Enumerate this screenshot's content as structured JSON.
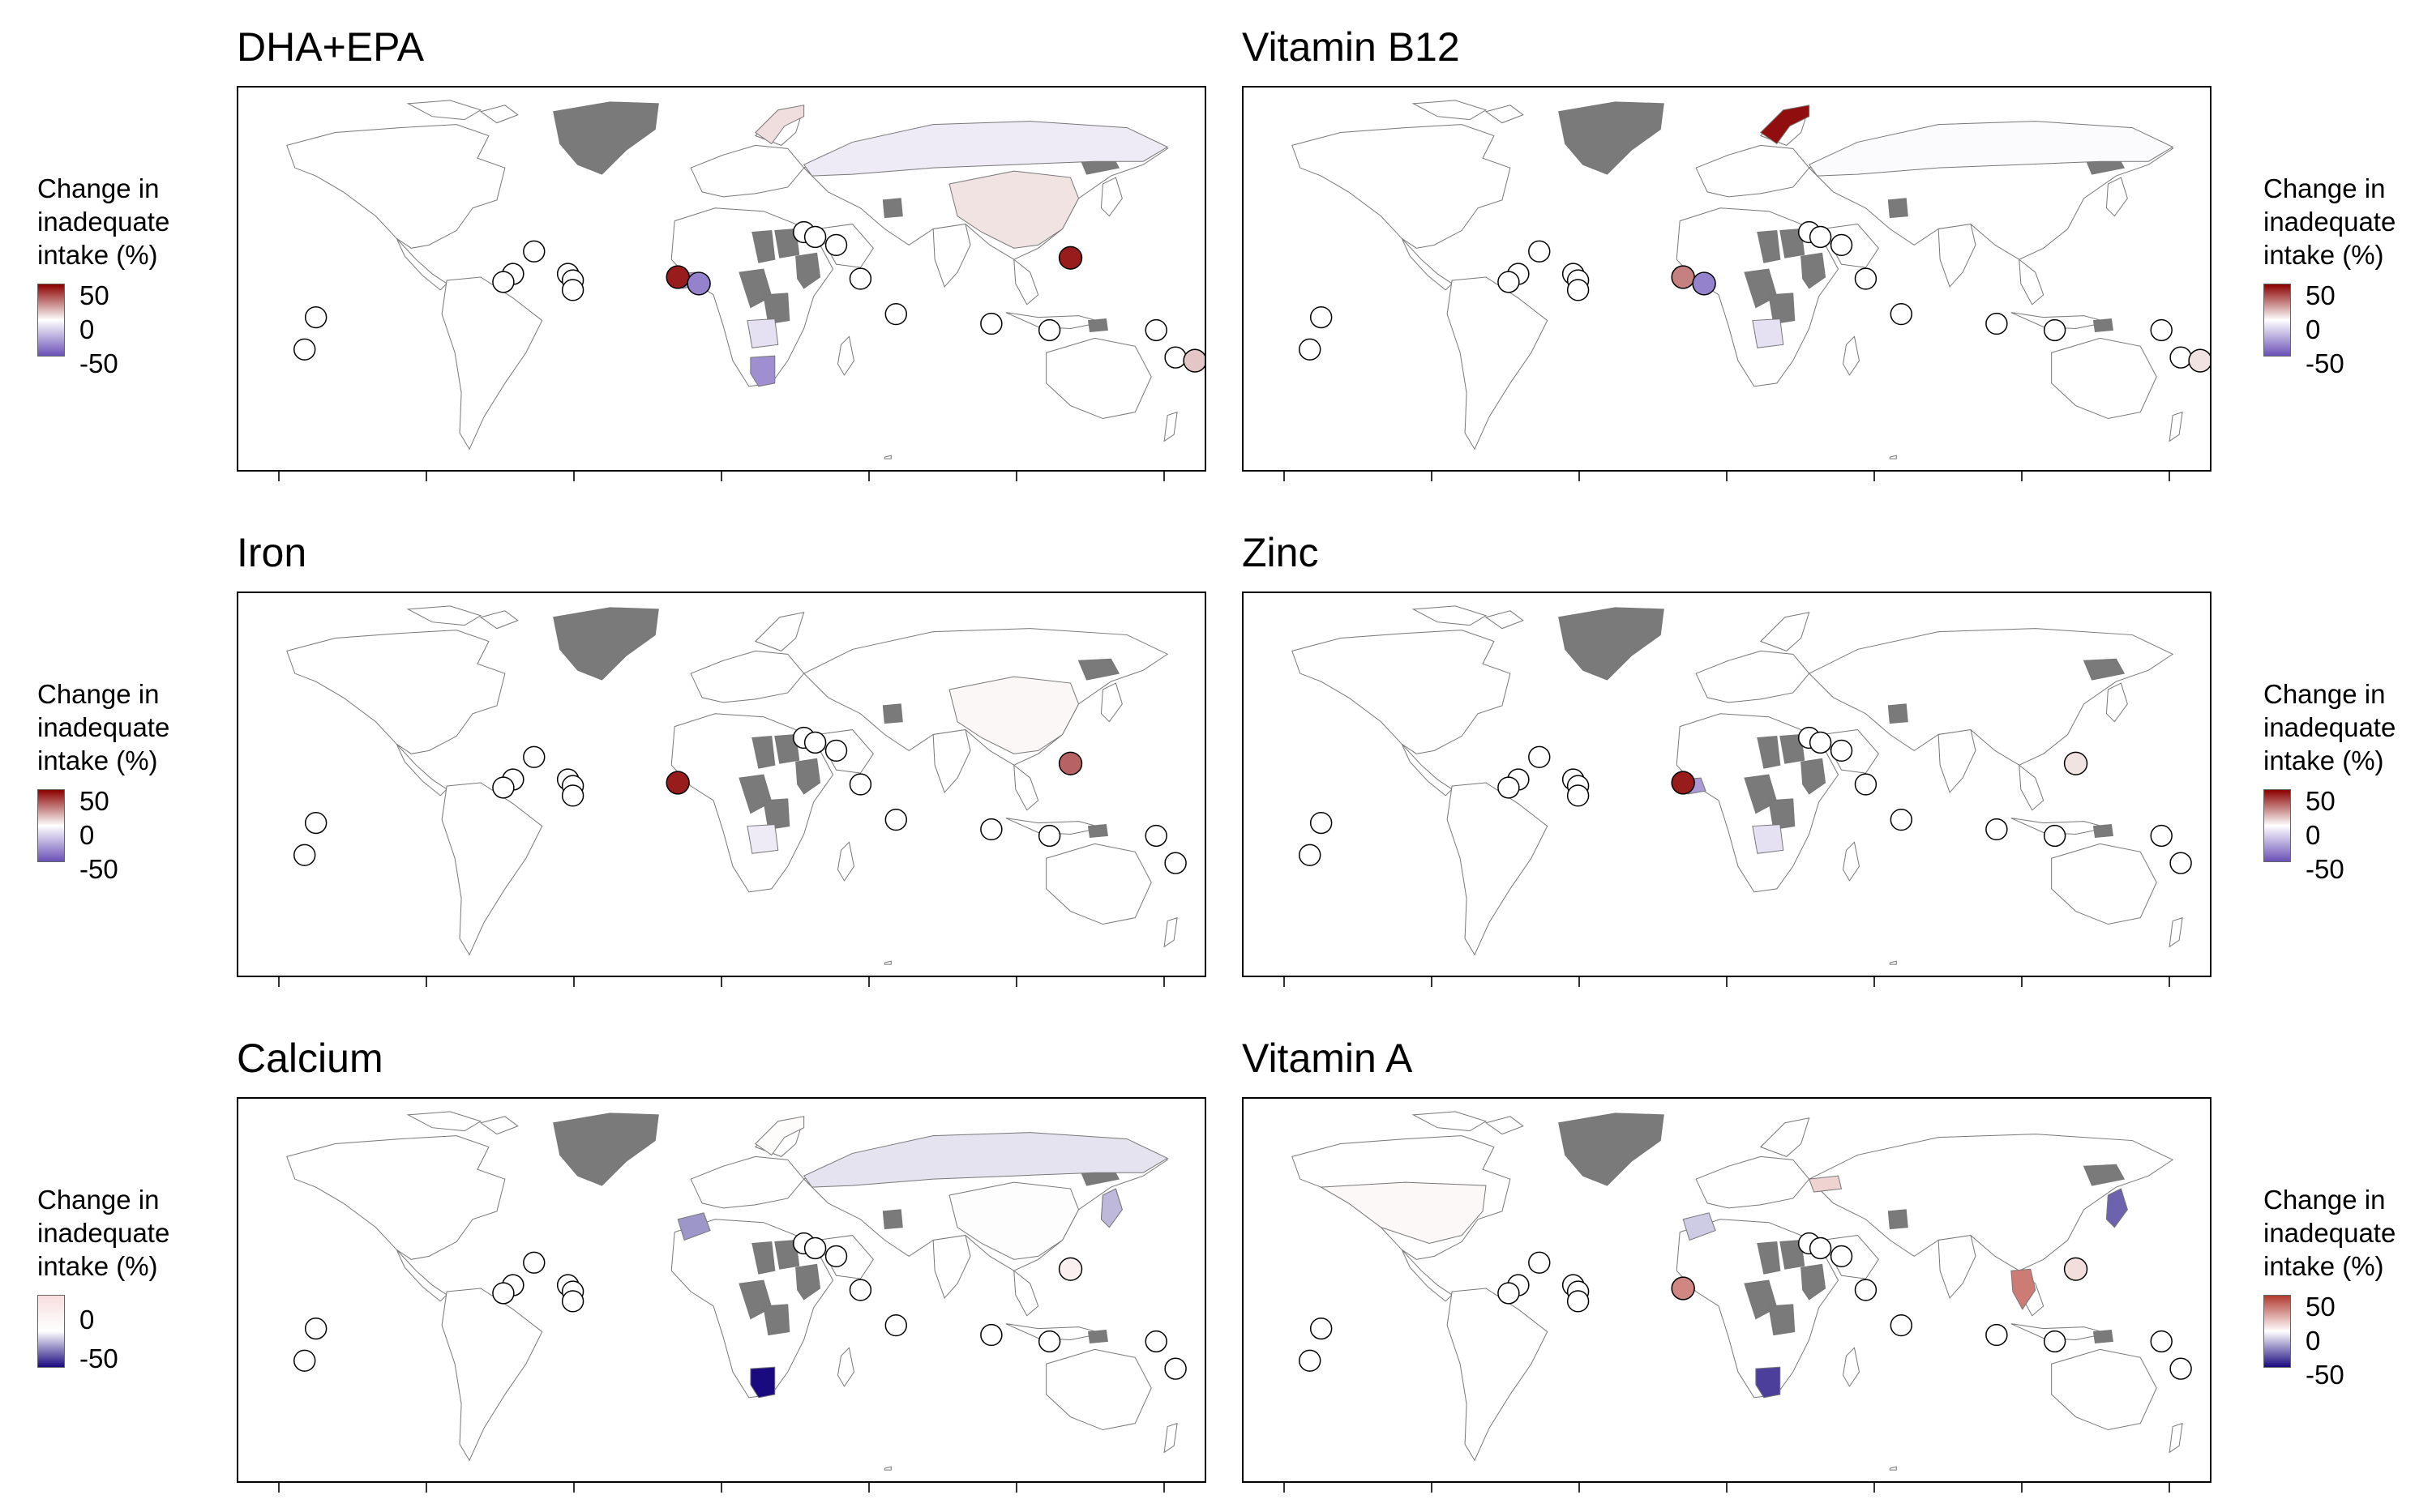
{
  "legend": {
    "title_line1": "Change in",
    "title_line2": "inadequate",
    "title_line3": "intake (%)"
  },
  "colors": {
    "positive_max": "#8b0000",
    "zero": "#ffffff",
    "negative_max": "#2d0a8c",
    "no_data": "#7a7a7a",
    "land_outline": "#777777"
  },
  "panels": [
    {
      "title": "DHA+EPA",
      "legend_ticks": [
        "50",
        "0",
        "-50"
      ],
      "gradient": [
        "#8b0000",
        "#ffffff",
        "#6a50b8"
      ],
      "regions": [
        {
          "name": "Russia",
          "change": -8
        },
        {
          "name": "China",
          "change": 10
        },
        {
          "name": "Namibia",
          "change": -45
        },
        {
          "name": "Angola",
          "change": -12
        },
        {
          "name": "Sierra Leone/Liberia",
          "change": -40
        },
        {
          "name": "Norway",
          "change": 12
        }
      ],
      "islands": [
        {
          "name": "Cabo Verde",
          "change": 80
        },
        {
          "name": "Gambia",
          "change": -50
        },
        {
          "name": "Philippines",
          "change": 80
        },
        {
          "name": "Fiji",
          "change": 20
        }
      ]
    },
    {
      "title": "Vitamin B12",
      "legend_ticks": [
        "50",
        "0",
        "-50"
      ],
      "gradient": [
        "#8b0000",
        "#ffffff",
        "#6a50b8"
      ],
      "regions": [
        {
          "name": "Norway",
          "change": 85
        },
        {
          "name": "Angola",
          "change": -12
        },
        {
          "name": "Russia",
          "change": -2
        }
      ],
      "islands": [
        {
          "name": "Cabo Verde",
          "change": 45
        },
        {
          "name": "Gambia",
          "change": -50
        },
        {
          "name": "Fiji",
          "change": 10
        }
      ]
    },
    {
      "title": "Iron",
      "legend_ticks": [
        "50",
        "0",
        "-50"
      ],
      "gradient": [
        "#8b0000",
        "#ffffff",
        "#6a50b8"
      ],
      "regions": [
        {
          "name": "Angola",
          "change": -8
        },
        {
          "name": "China",
          "change": 3
        }
      ],
      "islands": [
        {
          "name": "Cabo Verde",
          "change": 80
        },
        {
          "name": "Philippines",
          "change": 55
        }
      ]
    },
    {
      "title": "Zinc",
      "legend_ticks": [
        "50",
        "0",
        "-50"
      ],
      "gradient": [
        "#8b0000",
        "#ffffff",
        "#6a50b8"
      ],
      "regions": [
        {
          "name": "Angola",
          "change": -12
        },
        {
          "name": "Sierra Leone/Liberia",
          "change": -40
        }
      ],
      "islands": [
        {
          "name": "Cabo Verde",
          "change": 80
        },
        {
          "name": "Philippines",
          "change": 10
        }
      ]
    },
    {
      "title": "Calcium",
      "legend_ticks": [
        "0",
        "-50"
      ],
      "gradient": [
        "#f7dede",
        "#ffffff",
        "#1a0a80"
      ],
      "regions": [
        {
          "name": "Namibia",
          "change": -85
        },
        {
          "name": "Russia",
          "change": -8
        },
        {
          "name": "Norway",
          "change": 10
        },
        {
          "name": "Morocco",
          "change": -30
        },
        {
          "name": "Japan",
          "change": -20
        },
        {
          "name": "China",
          "change": 6
        }
      ],
      "islands": [
        {
          "name": "Philippines",
          "change": 45
        }
      ]
    },
    {
      "title": "Vitamin A",
      "legend_ticks": [
        "50",
        "0",
        "-50"
      ],
      "gradient": [
        "#b23a30",
        "#ffffff",
        "#1a0a80"
      ],
      "regions": [
        {
          "name": "Namibia",
          "change": -55
        },
        {
          "name": "Thailand",
          "change": 60
        },
        {
          "name": "Japan",
          "change": -45
        },
        {
          "name": "Ukraine",
          "change": 20
        },
        {
          "name": "Morocco",
          "change": -15
        },
        {
          "name": "USA",
          "change": 3
        }
      ],
      "islands": [
        {
          "name": "Cabo Verde",
          "change": 55
        },
        {
          "name": "Philippines",
          "change": 15
        }
      ]
    }
  ]
}
